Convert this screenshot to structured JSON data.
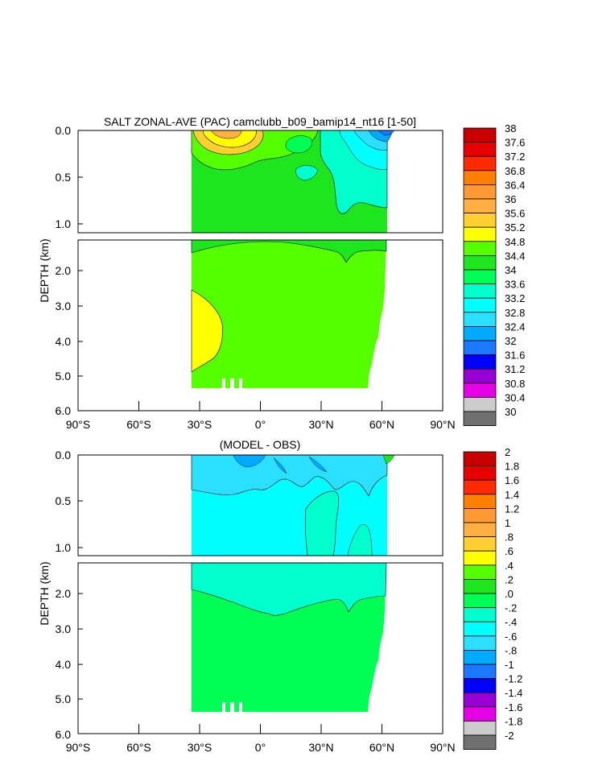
{
  "chart_data": [
    {
      "type": "heatmap",
      "title": "SALT ZONAL-AVE (PAC) camclubb_b09_bamip14_nt16 [1-50]",
      "ylabel": "DEPTH (km)",
      "xlabel": "",
      "x_ticks": [
        "90°S",
        "60°S",
        "30°S",
        "0°",
        "30°N",
        "60°N",
        "90°N"
      ],
      "x_values": [
        -90,
        -60,
        -30,
        0,
        30,
        60,
        90
      ],
      "xlim": [
        -90,
        90
      ],
      "y_ticks_upper": [
        "0.0",
        "0.5",
        "1.0"
      ],
      "y_ticks_lower": [
        "2.0",
        "3.0",
        "4.0",
        "5.0",
        "6.0"
      ],
      "ylim_upper": [
        0,
        1.1
      ],
      "ylim_lower": [
        1.1,
        6.0
      ],
      "colorbar_labels": [
        "38",
        "37.6",
        "37.2",
        "36.8",
        "36.4",
        "36",
        "35.6",
        "35.2",
        "34.8",
        "34.4",
        "34",
        "33.6",
        "33.2",
        "32.8",
        "32.4",
        "32",
        "31.6",
        "31.2",
        "30.8",
        "30.4",
        "30"
      ],
      "colorbar_colors": [
        "#c80000",
        "#e60000",
        "#ff2a00",
        "#ff8000",
        "#ff9933",
        "#ffb040",
        "#ffd030",
        "#ffff00",
        "#55ff00",
        "#1ee61e",
        "#00ff55",
        "#00ffcc",
        "#00ffff",
        "#2adfff",
        "#00aaff",
        "#1c78ff",
        "#0000ff",
        "#9600d2",
        "#e600e6",
        "#cccccc",
        "#707070"
      ],
      "data_x_range": [
        -34,
        62
      ],
      "data_depth_range": [
        0,
        5.35
      ]
    },
    {
      "type": "heatmap",
      "title": "(MODEL - OBS)",
      "ylabel": "DEPTH (km)",
      "xlabel": "",
      "x_ticks": [
        "90°S",
        "60°S",
        "30°S",
        "0°",
        "30°N",
        "60°N",
        "90°N"
      ],
      "x_values": [
        -90,
        -60,
        -30,
        0,
        30,
        60,
        90
      ],
      "xlim": [
        -90,
        90
      ],
      "y_ticks_upper": [
        "0.0",
        "0.5",
        "1.0"
      ],
      "y_ticks_lower": [
        "2.0",
        "3.0",
        "4.0",
        "5.0",
        "6.0"
      ],
      "ylim_upper": [
        0,
        1.1
      ],
      "ylim_lower": [
        1.1,
        6.0
      ],
      "colorbar_labels": [
        "2",
        "1.8",
        "1.6",
        "1.4",
        "1.2",
        "1",
        ".8",
        ".6",
        ".4",
        ".2",
        ".0",
        "-.2",
        "-.4",
        "-.6",
        "-.8",
        "-1",
        "-1.2",
        "-1.4",
        "-1.6",
        "-1.8",
        "-2"
      ],
      "colorbar_colors": [
        "#c80000",
        "#e60000",
        "#ff2a00",
        "#ff8000",
        "#ff9933",
        "#ffb040",
        "#ffd030",
        "#ffff00",
        "#55ff00",
        "#1ee61e",
        "#00ff55",
        "#00ffcc",
        "#00ffff",
        "#2adfff",
        "#00aaff",
        "#1c78ff",
        "#0000ff",
        "#9600d2",
        "#e600e6",
        "#cccccc",
        "#707070"
      ],
      "data_x_range": [
        -34,
        62
      ],
      "data_depth_range": [
        0,
        5.35
      ]
    }
  ]
}
